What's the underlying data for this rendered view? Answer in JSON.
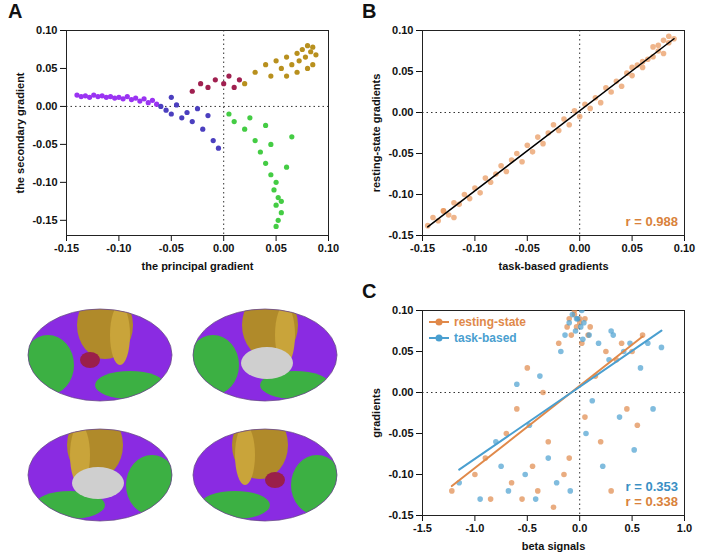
{
  "chart_data": [
    {
      "type": "scatter",
      "panel": "A",
      "x_label": "the principal gradient",
      "y_label": "the secondary gradient",
      "xlim": [
        -0.15,
        0.1
      ],
      "ylim": [
        -0.17,
        0.1
      ],
      "xticks": [
        -0.15,
        {
          "value": -0.1,
          "label": "-0.10"
        },
        -0.05,
        {
          "value": 0,
          "label": "0.00"
        },
        0.05,
        {
          "value": 0.1,
          "label": "0.10"
        }
      ],
      "yticks": [
        -0.15,
        {
          "value": -0.1,
          "label": "-0.10"
        },
        -0.05,
        {
          "value": 0,
          "label": "0.00"
        },
        0.05,
        {
          "value": 0.1,
          "label": "0.10"
        }
      ],
      "series": [
        {
          "color": "#9a33f2",
          "x": [
            -0.14,
            -0.136,
            -0.132,
            -0.128,
            -0.124,
            -0.12,
            -0.116,
            -0.112,
            -0.108,
            -0.104,
            -0.1,
            -0.096,
            -0.092,
            -0.088,
            -0.084,
            -0.08,
            -0.076,
            -0.072,
            -0.068,
            -0.064
          ],
          "y": [
            0.015,
            0.013,
            0.014,
            0.012,
            0.015,
            0.013,
            0.014,
            0.012,
            0.013,
            0.011,
            0.012,
            0.01,
            0.013,
            0.009,
            0.011,
            0.007,
            0.01,
            0.005,
            0.008,
            0.003
          ]
        },
        {
          "color": "#4b3fbf",
          "x": [
            -0.06,
            -0.055,
            -0.05,
            -0.045,
            -0.04,
            -0.035,
            -0.03,
            -0.025,
            -0.02,
            -0.015,
            -0.01,
            -0.005,
            -0.05
          ],
          "y": [
            0.0,
            -0.005,
            -0.01,
            0.002,
            -0.015,
            -0.008,
            -0.02,
            -0.003,
            -0.03,
            -0.012,
            -0.045,
            -0.055,
            0.012
          ]
        },
        {
          "color": "#a02050",
          "x": [
            -0.03,
            -0.022,
            -0.015,
            -0.008,
            0.0,
            0.005,
            0.01,
            0.015
          ],
          "y": [
            0.02,
            0.03,
            0.025,
            0.035,
            0.03,
            0.04,
            0.025,
            0.035
          ]
        },
        {
          "color": "#b8901e",
          "x": [
            0.02,
            0.03,
            0.04,
            0.045,
            0.05,
            0.055,
            0.06,
            0.065,
            0.07,
            0.072,
            0.075,
            0.078,
            0.08,
            0.083,
            0.085,
            0.088,
            0.06,
            0.07,
            0.08,
            0.085
          ],
          "y": [
            0.03,
            0.045,
            0.055,
            0.04,
            0.06,
            0.05,
            0.065,
            0.055,
            0.07,
            0.06,
            0.075,
            0.065,
            0.08,
            0.072,
            0.078,
            0.068,
            0.04,
            0.045,
            0.05,
            0.055
          ]
        },
        {
          "color": "#44cc44",
          "x": [
            0.005,
            0.01,
            0.02,
            0.025,
            0.03,
            0.035,
            0.04,
            0.04,
            0.045,
            0.045,
            0.05,
            0.048,
            0.052,
            0.05,
            0.055,
            0.052,
            0.05,
            0.055,
            0.06,
            0.065
          ],
          "y": [
            -0.01,
            -0.02,
            -0.03,
            -0.015,
            -0.045,
            -0.06,
            -0.025,
            -0.075,
            -0.09,
            -0.05,
            -0.1,
            -0.11,
            -0.12,
            -0.13,
            -0.14,
            -0.15,
            -0.158,
            -0.125,
            -0.08,
            -0.04
          ]
        }
      ]
    },
    {
      "type": "scatter",
      "panel": "B",
      "x_label": "task-based gradients",
      "y_label": "resting-state gradients",
      "xlim": [
        -0.15,
        0.1
      ],
      "ylim": [
        -0.15,
        0.1
      ],
      "xticks": [
        -0.15,
        {
          "value": -0.1,
          "label": "-0.10"
        },
        -0.05,
        {
          "value": 0,
          "label": "0.00"
        },
        0.05,
        {
          "value": 0.1,
          "label": "0.10"
        }
      ],
      "yticks": [
        -0.15,
        {
          "value": -0.1,
          "label": "-0.10"
        },
        -0.05,
        {
          "value": 0,
          "label": "0.00"
        },
        0.05,
        {
          "value": 0.1,
          "label": "0.10"
        }
      ],
      "annotations": [
        {
          "text": "r = 0.988",
          "color": "#d9823b"
        }
      ],
      "series": [
        {
          "color": "#e8955a",
          "x": [
            -0.145,
            -0.14,
            -0.135,
            -0.13,
            -0.125,
            -0.12,
            -0.115,
            -0.11,
            -0.105,
            -0.1,
            -0.095,
            -0.09,
            -0.085,
            -0.08,
            -0.075,
            -0.07,
            -0.065,
            -0.06,
            -0.055,
            -0.05,
            -0.045,
            -0.04,
            -0.035,
            -0.03,
            -0.025,
            -0.02,
            -0.015,
            -0.01,
            -0.005,
            0.0,
            0.005,
            0.01,
            0.015,
            0.02,
            0.025,
            0.03,
            0.035,
            0.04,
            0.045,
            0.05,
            0.055,
            0.06,
            0.065,
            0.07,
            0.075,
            0.08,
            0.085,
            0.09,
            0.06,
            0.07,
            0.08,
            0.075,
            0.085,
            0.05,
            -0.13,
            -0.12
          ],
          "y": [
            -0.138,
            -0.128,
            -0.132,
            -0.12,
            -0.125,
            -0.11,
            -0.112,
            -0.1,
            -0.105,
            -0.092,
            -0.098,
            -0.08,
            -0.085,
            -0.075,
            -0.065,
            -0.072,
            -0.058,
            -0.05,
            -0.06,
            -0.04,
            -0.048,
            -0.03,
            -0.038,
            -0.025,
            -0.015,
            -0.022,
            -0.008,
            -0.015,
            0.002,
            -0.005,
            0.01,
            0.005,
            0.018,
            0.012,
            0.03,
            0.025,
            0.038,
            0.032,
            0.048,
            0.045,
            0.058,
            0.055,
            0.065,
            0.068,
            0.075,
            0.072,
            0.085,
            0.09,
            0.062,
            0.08,
            0.088,
            0.082,
            0.093,
            0.055,
            -0.12,
            -0.128
          ]
        }
      ]
    },
    {
      "type": "scatter",
      "panel": "C",
      "x_label": "beta signals",
      "y_label": "gradients",
      "xlim": [
        -1.5,
        1.0
      ],
      "ylim": [
        -0.15,
        0.1
      ],
      "xticks": [
        -1.5,
        {
          "value": -1.0,
          "label": "-1.0"
        },
        -0.5,
        {
          "value": 0,
          "label": "0.0"
        },
        0.5,
        {
          "value": 1.0,
          "label": "1.0"
        }
      ],
      "yticks": [
        -0.15,
        {
          "value": -0.1,
          "label": "-0.10"
        },
        -0.05,
        {
          "value": 0,
          "label": "0.00"
        },
        0.05,
        {
          "value": 0.1,
          "label": "0.10"
        }
      ],
      "legend": "top-left",
      "annotations": [
        {
          "text": "r = 0.353",
          "color": "#3a8fc4"
        },
        {
          "text": "r = 0.338",
          "color": "#d9823b"
        }
      ],
      "series": [
        {
          "name": "resting-state",
          "color": "#e0894a",
          "x": [
            -1.22,
            -1.0,
            -0.9,
            -0.85,
            -0.7,
            -0.65,
            -0.6,
            -0.55,
            -0.5,
            -0.45,
            -0.4,
            -0.35,
            -0.3,
            -0.25,
            -0.2,
            -0.15,
            -0.12,
            -0.1,
            -0.08,
            -0.05,
            -0.03,
            0.0,
            0.02,
            0.05,
            0.08,
            0.1,
            0.15,
            0.2,
            0.25,
            0.3,
            0.35,
            0.4,
            0.45,
            0.5,
            0.55,
            0.6,
            -0.1,
            -0.05,
            0.0,
            0.05
          ],
          "y": [
            -0.12,
            -0.1,
            -0.08,
            -0.13,
            -0.05,
            -0.11,
            -0.02,
            -0.13,
            0.03,
            -0.09,
            -0.12,
            0.0,
            -0.06,
            -0.14,
            0.06,
            -0.1,
            0.08,
            0.09,
            0.07,
            0.1,
            0.08,
            0.09,
            0.06,
            -0.03,
            0.07,
            0.08,
            0.02,
            -0.06,
            0.05,
            -0.12,
            0.04,
            0.06,
            -0.02,
            0.05,
            -0.04,
            0.07,
            -0.08,
            0.095,
            0.085,
            0.09
          ]
        },
        {
          "name": "task-based",
          "color": "#4a9fd0",
          "x": [
            -1.15,
            -0.95,
            -0.8,
            -0.75,
            -0.68,
            -0.6,
            -0.52,
            -0.48,
            -0.42,
            -0.38,
            -0.3,
            -0.22,
            -0.18,
            -0.14,
            -0.1,
            -0.07,
            -0.04,
            -0.02,
            0.01,
            0.03,
            0.06,
            0.09,
            0.12,
            0.18,
            0.22,
            0.28,
            0.32,
            0.38,
            0.42,
            0.48,
            0.52,
            0.58,
            0.65,
            0.7,
            0.78,
            -0.09,
            -0.03,
            0.02,
            0.04,
            0.3
          ],
          "y": [
            -0.11,
            -0.13,
            -0.06,
            -0.09,
            -0.12,
            0.01,
            -0.1,
            -0.04,
            -0.13,
            0.02,
            -0.08,
            -0.11,
            0.05,
            0.07,
            0.085,
            0.095,
            0.075,
            0.09,
            0.08,
            0.065,
            -0.05,
            0.07,
            -0.01,
            0.06,
            -0.09,
            0.04,
            0.07,
            -0.03,
            0.05,
            0.06,
            -0.07,
            0.03,
            0.06,
            -0.02,
            0.055,
            -0.12,
            0.09,
            0.1,
            0.085,
            0.075
          ]
        }
      ]
    }
  ]
}
